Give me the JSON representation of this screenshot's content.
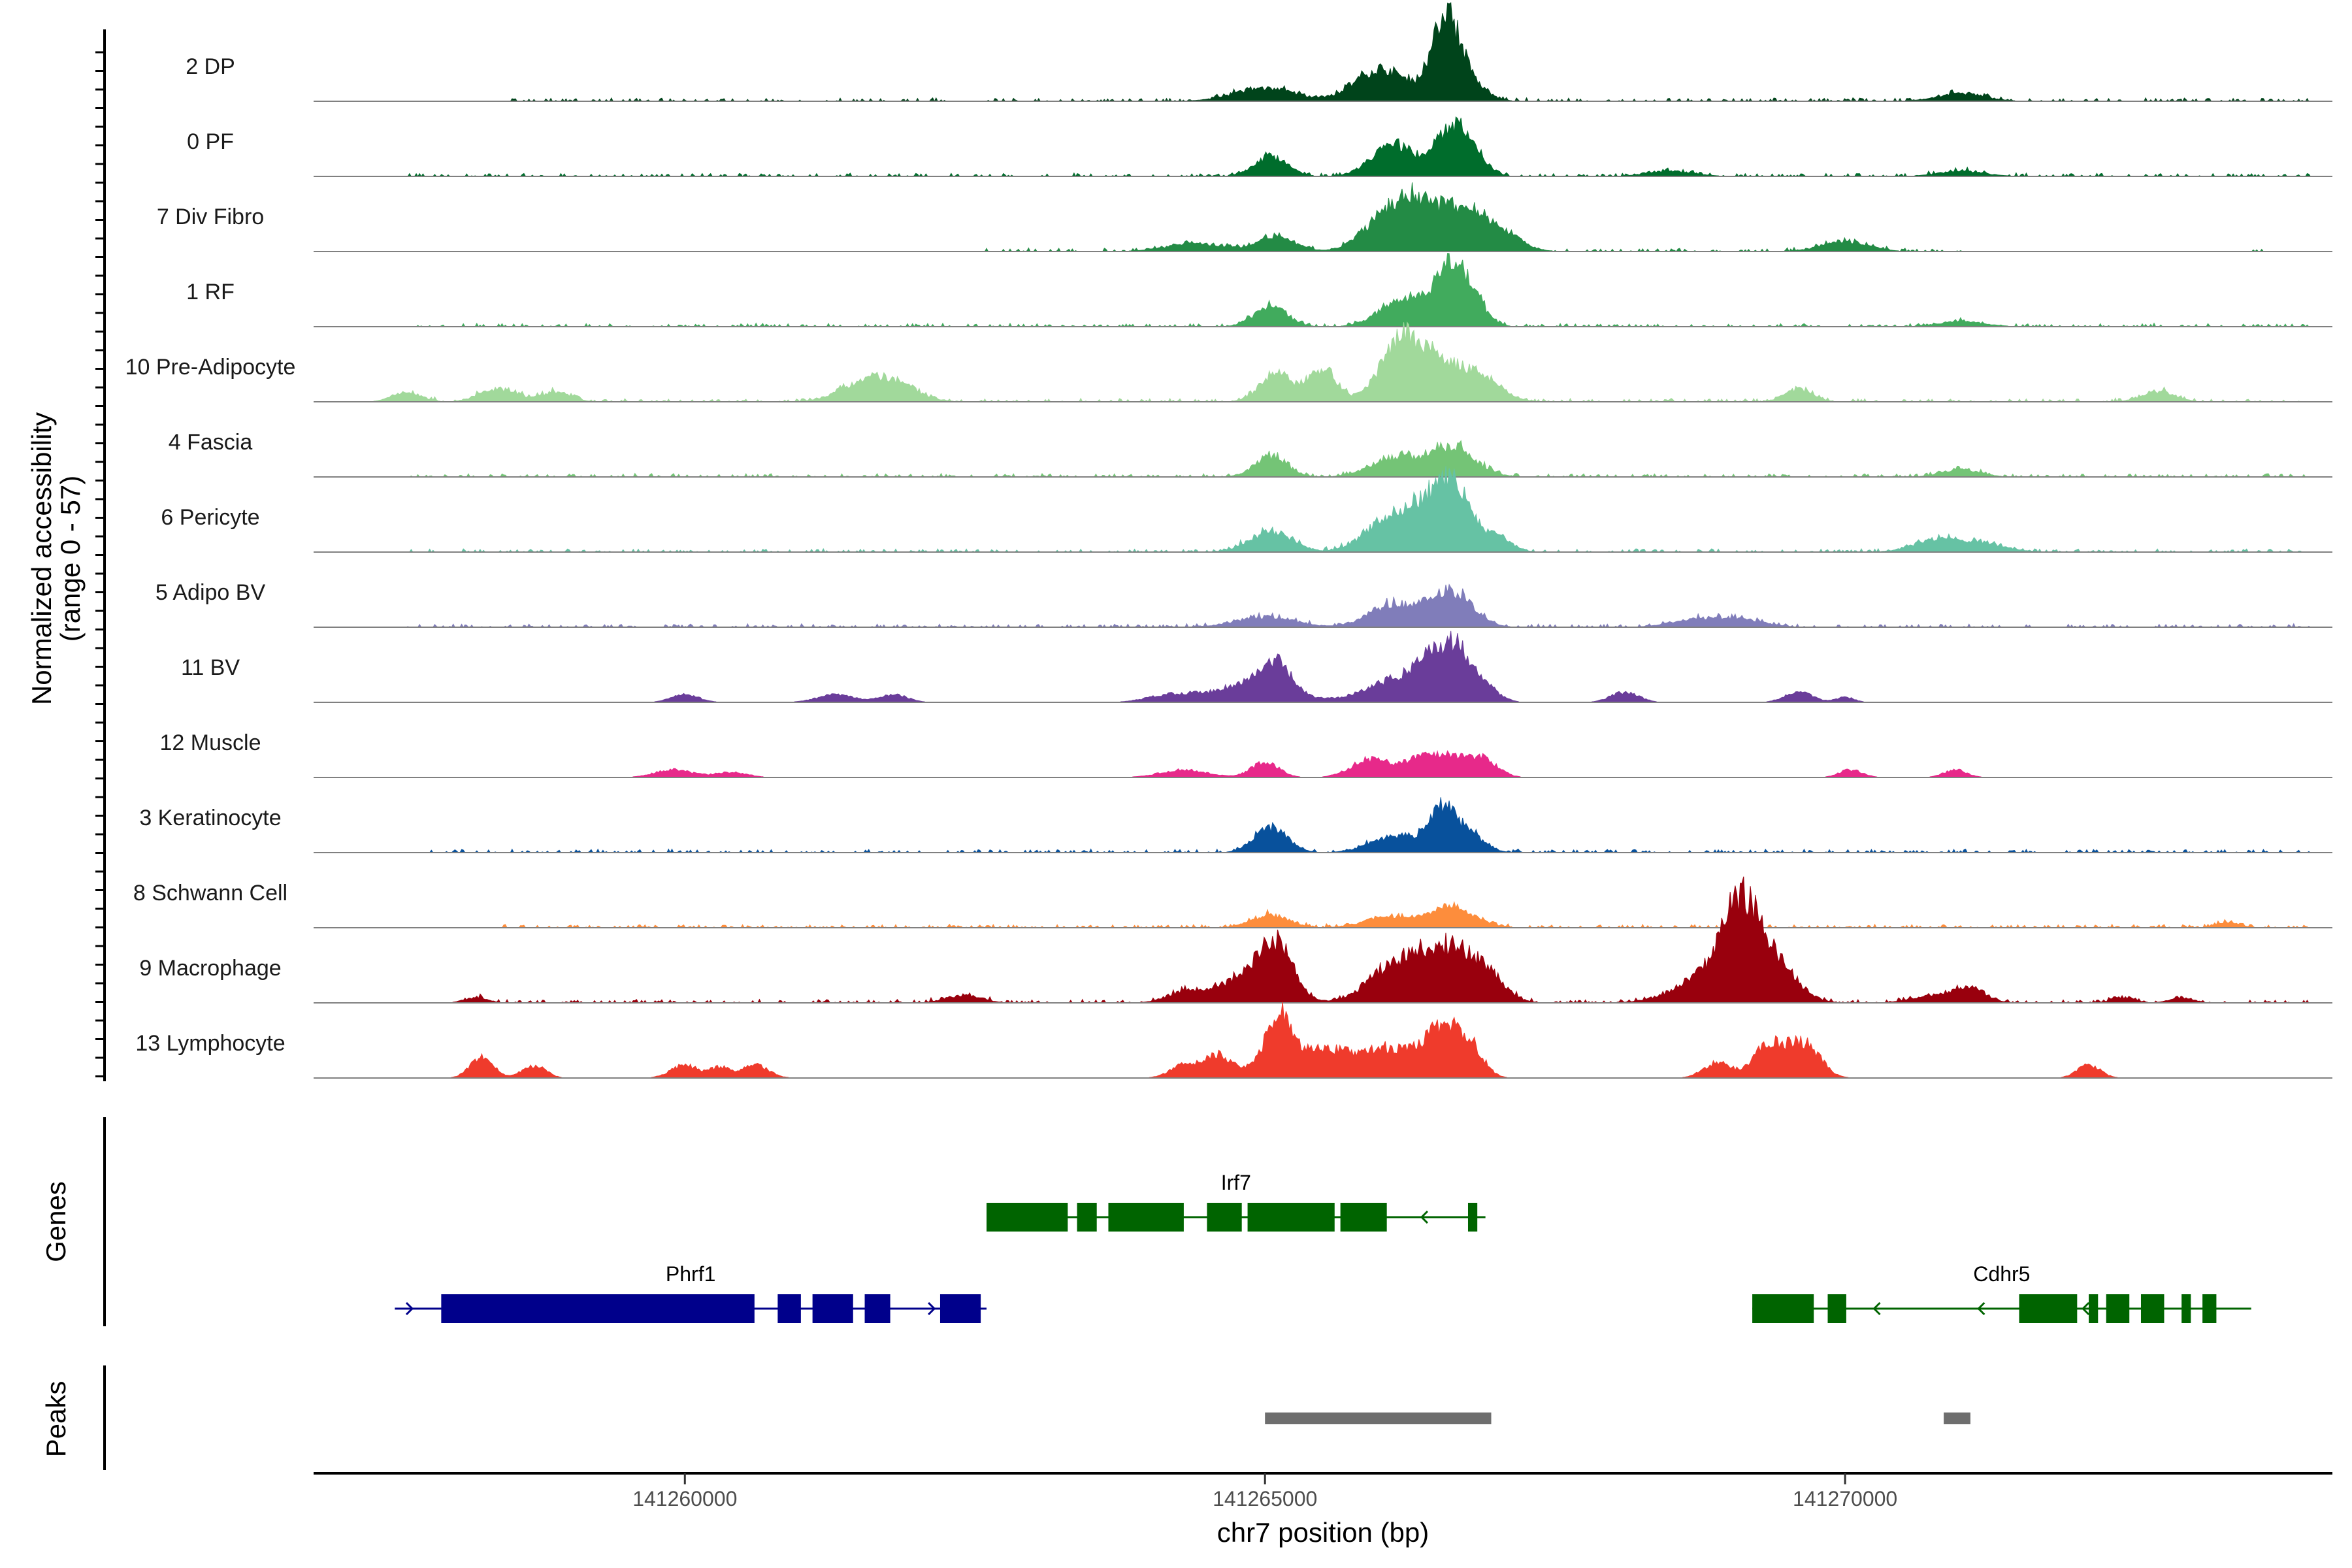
{
  "chart_data": {
    "type": "coverage-track",
    "y_title": "Normalized accessibility",
    "y_range_label": "(range 0 - 57)",
    "y_range": [
      0,
      57
    ],
    "x_title": "chr7 position (bp)",
    "x_range": [
      141256800,
      141274200
    ],
    "x_ticks": [
      141260000,
      141265000,
      141270000
    ],
    "x_tick_labels": [
      "141260000",
      "141265000",
      "141270000"
    ],
    "tracks": [
      {
        "name": "2 DP",
        "color": "#00441b",
        "peaks": [
          [
            141265000,
            5,
            260
          ],
          [
            141266000,
            13,
            220
          ],
          [
            141266550,
            28,
            120
          ],
          [
            141266700,
            9,
            160
          ],
          [
            141271000,
            3,
            200
          ]
        ],
        "noise": [
          [
            141258500,
            141274000
          ]
        ]
      },
      {
        "name": "0 PF",
        "color": "#006d2c",
        "peaks": [
          [
            141265050,
            8,
            140
          ],
          [
            141266100,
            13,
            180
          ],
          [
            141266600,
            19,
            140
          ],
          [
            141266800,
            6,
            120
          ],
          [
            141268500,
            2,
            200
          ],
          [
            141271000,
            2,
            200
          ]
        ],
        "noise": [
          [
            141257600,
            141274000
          ]
        ]
      },
      {
        "name": "7 Div Fibro",
        "color": "#238b45",
        "peaks": [
          [
            141264400,
            3,
            250
          ],
          [
            141265100,
            6,
            160
          ],
          [
            141266050,
            14,
            200
          ],
          [
            141266300,
            13,
            150
          ],
          [
            141266650,
            16,
            200
          ],
          [
            141267000,
            8,
            180
          ],
          [
            141270000,
            4,
            200
          ]
        ],
        "noise": [
          [
            141262600,
            141271000
          ],
          [
            141273500,
            141273600
          ]
        ]
      },
      {
        "name": "1 RF",
        "color": "#41ab5d",
        "peaks": [
          [
            141265050,
            8,
            140
          ],
          [
            141266200,
            11,
            200
          ],
          [
            141266600,
            22,
            140
          ],
          [
            141266800,
            7,
            120
          ],
          [
            141271000,
            2,
            200
          ]
        ],
        "noise": [
          [
            141257600,
            141274000
          ]
        ]
      },
      {
        "name": "10 Pre-Adipocyte",
        "color": "#a1d99b",
        "peaks": [
          [
            141257600,
            4,
            120
          ],
          [
            141258400,
            5,
            160
          ],
          [
            141258900,
            4,
            120
          ],
          [
            141261500,
            6,
            200
          ],
          [
            141261800,
            7,
            200
          ],
          [
            141265100,
            11,
            140
          ],
          [
            141265500,
            13,
            120
          ],
          [
            141266100,
            14,
            160
          ],
          [
            141266300,
            17,
            160
          ],
          [
            141266600,
            11,
            180
          ],
          [
            141266900,
            8,
            160
          ],
          [
            141269600,
            5,
            120
          ],
          [
            141272700,
            4,
            140
          ]
        ],
        "noise": [
          [
            141257600,
            141274000
          ]
        ]
      },
      {
        "name": "4 Fascia",
        "color": "#74c476",
        "peaks": [
          [
            141265050,
            8,
            140
          ],
          [
            141266100,
            7,
            200
          ],
          [
            141266600,
            12,
            200
          ],
          [
            141271000,
            3,
            160
          ]
        ],
        "noise": [
          [
            141257600,
            141274000
          ]
        ]
      },
      {
        "name": "6 Pericyte",
        "color": "#66c2a4",
        "peaks": [
          [
            141265050,
            8,
            180
          ],
          [
            141266050,
            12,
            200
          ],
          [
            141266300,
            10,
            150
          ],
          [
            141266600,
            28,
            160
          ],
          [
            141267000,
            6,
            120
          ],
          [
            141270800,
            5,
            200
          ],
          [
            141271200,
            3,
            200
          ]
        ],
        "noise": [
          [
            141257600,
            141274000
          ]
        ]
      },
      {
        "name": "5 Adipo BV",
        "color": "#807dba",
        "peaks": [
          [
            141265000,
            4,
            250
          ],
          [
            141266100,
            9,
            200
          ],
          [
            141266600,
            14,
            180
          ],
          [
            141268700,
            3,
            200
          ],
          [
            141269100,
            3,
            200
          ]
        ],
        "noise": [
          [
            141257600,
            141274000
          ]
        ]
      },
      {
        "name": "11 BV",
        "color": "#6a3d9a",
        "peaks": [
          [
            141260000,
            3,
            120
          ],
          [
            141261300,
            3,
            160
          ],
          [
            141261800,
            3,
            120
          ],
          [
            141264200,
            3,
            200
          ],
          [
            141264900,
            8,
            300
          ],
          [
            141265100,
            10,
            120
          ],
          [
            141266100,
            8,
            260
          ],
          [
            141266500,
            18,
            180
          ],
          [
            141266700,
            10,
            120
          ],
          [
            141266900,
            5,
            120
          ],
          [
            141268100,
            4,
            120
          ],
          [
            141269600,
            4,
            120
          ],
          [
            141270000,
            2,
            80
          ]
        ],
        "noise": []
      },
      {
        "name": "12 Muscle",
        "color": "#e7298a",
        "peaks": [
          [
            141259900,
            3,
            160
          ],
          [
            141260400,
            2,
            140
          ],
          [
            141264300,
            3,
            200
          ],
          [
            141265000,
            6,
            120
          ],
          [
            141265900,
            7,
            160
          ],
          [
            141266300,
            5,
            160
          ],
          [
            141266600,
            8,
            200
          ],
          [
            141266900,
            5,
            120
          ],
          [
            141270050,
            3,
            100
          ],
          [
            141270950,
            3,
            100
          ]
        ],
        "noise": []
      },
      {
        "name": "3 Keratinocyte",
        "color": "#08519c",
        "peaks": [
          [
            141265050,
            10,
            140
          ],
          [
            141266100,
            6,
            200
          ],
          [
            141266550,
            18,
            140
          ],
          [
            141266850,
            4,
            100
          ]
        ],
        "noise": [
          [
            141257800,
            141274000
          ]
        ]
      },
      {
        "name": "8 Schwann Cell",
        "color": "#fd8d3c",
        "peaks": [
          [
            141265050,
            5,
            160
          ],
          [
            141266050,
            4,
            200
          ],
          [
            141266600,
            8,
            200
          ],
          [
            141273300,
            2,
            100
          ]
        ],
        "noise": [
          [
            141258400,
            141274000
          ]
        ]
      },
      {
        "name": "9 Macrophage",
        "color": "#99000d",
        "peaks": [
          [
            141258200,
            2,
            100
          ],
          [
            141262400,
            3,
            150
          ],
          [
            141264300,
            4,
            150
          ],
          [
            141264850,
            10,
            250
          ],
          [
            141265100,
            19,
            140
          ],
          [
            141266100,
            13,
            220
          ],
          [
            141266550,
            21,
            240
          ],
          [
            141266900,
            8,
            160
          ],
          [
            141268800,
            10,
            260
          ],
          [
            141269100,
            34,
            160
          ],
          [
            141269400,
            15,
            180
          ],
          [
            141270800,
            3,
            200
          ],
          [
            141271100,
            5,
            120
          ],
          [
            141272400,
            2,
            100
          ],
          [
            141272900,
            2,
            100
          ]
        ],
        "noise": [
          [
            141258100,
            141274000
          ]
        ]
      },
      {
        "name": "13 Lymphocyte",
        "color": "#ef3b2c",
        "peaks": [
          [
            141258250,
            8,
            100
          ],
          [
            141258700,
            5,
            100
          ],
          [
            141260000,
            5,
            120
          ],
          [
            141260300,
            4,
            80
          ],
          [
            141260600,
            5,
            120
          ],
          [
            141264300,
            5,
            120
          ],
          [
            141264600,
            9,
            120
          ],
          [
            141265000,
            8,
            120
          ],
          [
            141265150,
            19,
            100
          ],
          [
            141265500,
            12,
            220
          ],
          [
            141266000,
            10,
            180
          ],
          [
            141266400,
            9,
            200
          ],
          [
            141266600,
            15,
            160
          ],
          [
            141266800,
            6,
            100
          ],
          [
            141268900,
            6,
            120
          ],
          [
            141269300,
            8,
            120
          ],
          [
            141269500,
            10,
            160
          ],
          [
            141269700,
            8,
            120
          ],
          [
            141272100,
            5,
            100
          ]
        ],
        "noise": []
      }
    ],
    "genes_title": "Genes",
    "genes": [
      {
        "name": "Irf7",
        "color": "#006400",
        "strand": "-",
        "row": 0,
        "start": 141262600,
        "end": 141266900,
        "exons": [
          [
            141262600,
            141263300
          ],
          [
            141263380,
            141263550
          ],
          [
            141263650,
            141264300
          ],
          [
            141264500,
            141264800
          ],
          [
            141264850,
            141265600
          ],
          [
            141265650,
            141266050
          ],
          [
            141266750,
            141266830
          ]
        ]
      },
      {
        "name": "Phrf1",
        "color": "#00008b",
        "strand": "+",
        "row": 1,
        "start": 141257500,
        "end": 141262600,
        "exons": [
          [
            141257900,
            141260600
          ],
          [
            141260800,
            141261000
          ],
          [
            141261100,
            141261450
          ],
          [
            141261550,
            141261770
          ],
          [
            141262200,
            141262550
          ]
        ]
      },
      {
        "name": "Cdhr5",
        "color": "#006400",
        "strand": "-",
        "row": 1,
        "start": 141269200,
        "end": 141273500,
        "exons": [
          [
            141269200,
            141269730
          ],
          [
            141269850,
            141270010
          ],
          [
            141271500,
            141272000
          ],
          [
            141272100,
            141272180
          ],
          [
            141272250,
            141272450
          ],
          [
            141272550,
            141272750
          ],
          [
            141272900,
            141272980
          ],
          [
            141273080,
            141273200
          ]
        ]
      }
    ],
    "peaks_title": "Peaks",
    "peak_regions": [
      [
        141265000,
        141266950
      ],
      [
        141270850,
        141271080
      ]
    ]
  }
}
